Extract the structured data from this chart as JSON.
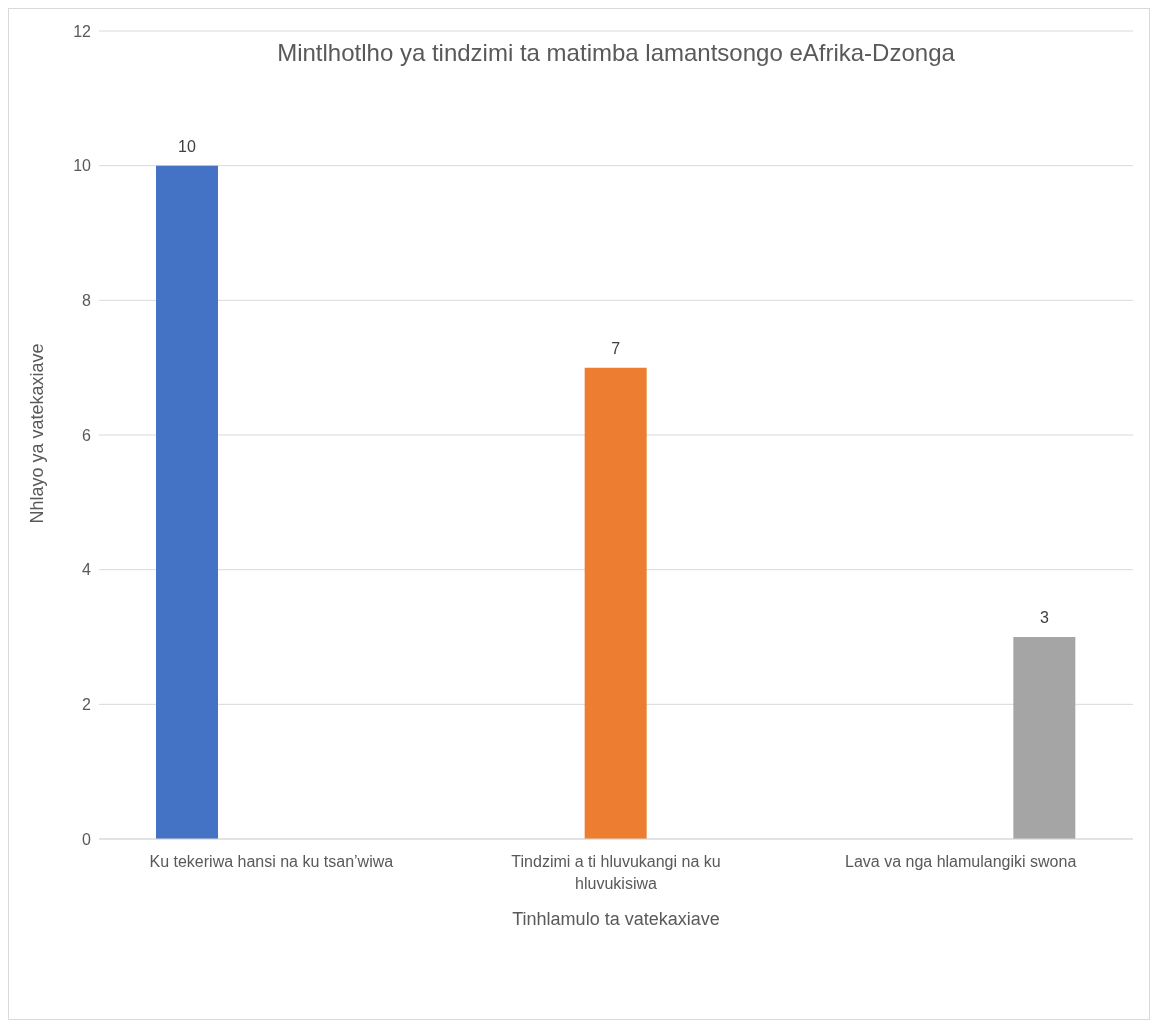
{
  "chart_data": {
    "type": "bar",
    "title": "Mintlhotlho ya tindzimi ta matimba lamantsongo eAfrika-Dzonga",
    "xlabel": "Tinhlamulo ta vatekaxiave",
    "ylabel": "Nhlayo ya vatekaxiave",
    "categories": [
      "Ku tekeriwa hansi na ku tsan’wiwa",
      "Tindzimi a ti hluvukangi na ku hluvukisiwa",
      "Lava va nga hlamulangiki swona"
    ],
    "series": [
      {
        "color": "#4472c4",
        "values": [
          10,
          null,
          null
        ]
      },
      {
        "color": "#ed7d31",
        "values": [
          null,
          7,
          null
        ]
      },
      {
        "color": "#a5a5a5",
        "values": [
          null,
          null,
          3
        ]
      }
    ],
    "ylim": [
      0,
      12
    ],
    "yticks": [
      0,
      2,
      4,
      6,
      8,
      10,
      12
    ],
    "grid": "y",
    "data_labels": true
  }
}
